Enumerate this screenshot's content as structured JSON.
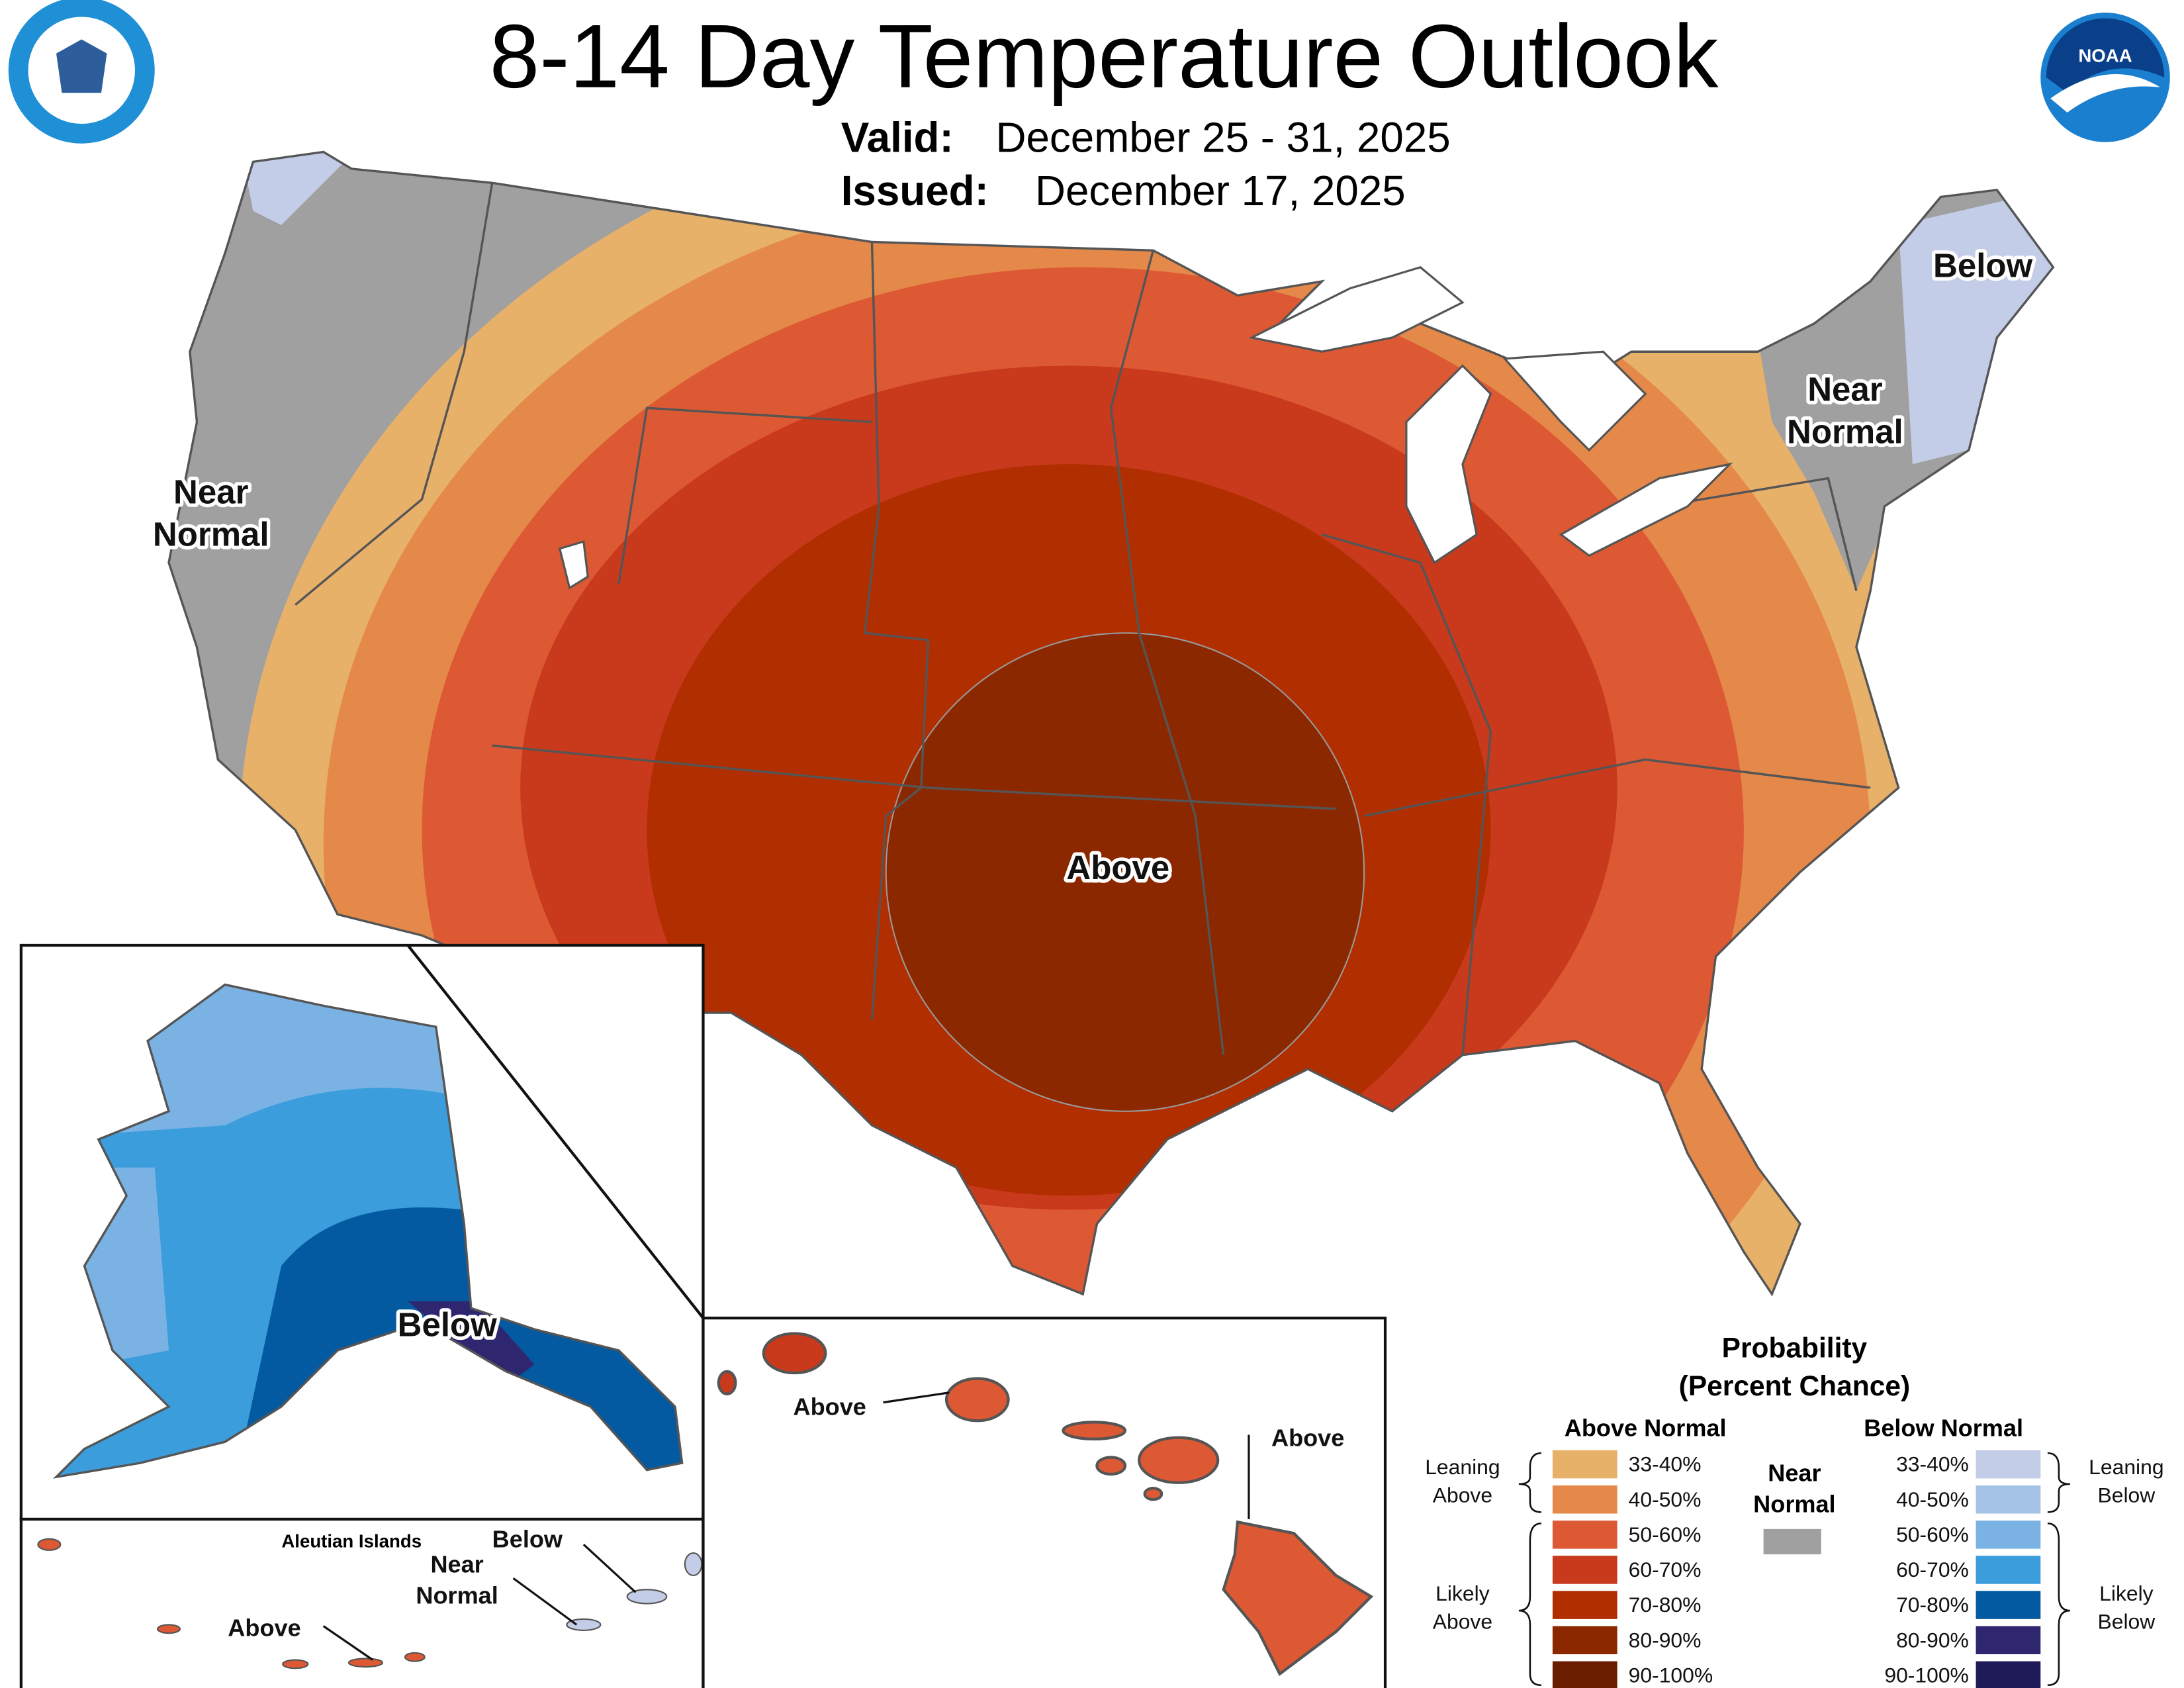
{
  "header": {
    "title": "8-14 Day Temperature Outlook",
    "valid_label": "Valid:",
    "valid": "December 25 - 31, 2025",
    "issued_label": "Issued:",
    "issued": "December 17, 2025"
  },
  "logos": {
    "noaa": "NOAA"
  },
  "conus_labels": {
    "west": [
      "Near",
      "Normal"
    ],
    "northeast_below": "Below",
    "northeast_near": [
      "Near",
      "Normal"
    ],
    "central": "Above"
  },
  "alaska_labels": {
    "mainland": "Below",
    "aleutian_title": "Aleutian Islands",
    "aleutian_below": "Below",
    "aleutian_near": [
      "Near",
      "Normal"
    ],
    "aleutian_above": "Above"
  },
  "hawaii_labels": {
    "west": "Above",
    "east": "Above"
  },
  "legend": {
    "title": [
      "Probability",
      "(Percent Chance)"
    ],
    "above_header": "Above Normal",
    "below_header": "Below Normal",
    "near": [
      "Near",
      "Normal"
    ],
    "near_color": "#a0a0a0",
    "leaning_above": [
      "Leaning",
      "Above"
    ],
    "likely_above": [
      "Likely",
      "Above"
    ],
    "leaning_below": [
      "Leaning",
      "Below"
    ],
    "likely_below": [
      "Likely",
      "Below"
    ],
    "above": [
      {
        "label": "33-40%",
        "color": "#e8b16a"
      },
      {
        "label": "40-50%",
        "color": "#e5894a"
      },
      {
        "label": "50-60%",
        "color": "#dc5934"
      },
      {
        "label": "60-70%",
        "color": "#c9391c"
      },
      {
        "label": "70-80%",
        "color": "#b02e00"
      },
      {
        "label": "80-90%",
        "color": "#8c2800"
      },
      {
        "label": "90-100%",
        "color": "#6b1d00"
      }
    ],
    "below": [
      {
        "label": "33-40%",
        "color": "#c3cde8"
      },
      {
        "label": "40-50%",
        "color": "#a4c3e5"
      },
      {
        "label": "50-60%",
        "color": "#7ab3e3"
      },
      {
        "label": "60-70%",
        "color": "#3c9ddc"
      },
      {
        "label": "70-80%",
        "color": "#045aa0"
      },
      {
        "label": "80-90%",
        "color": "#2e2770"
      },
      {
        "label": "90-100%",
        "color": "#1f1a58"
      }
    ]
  }
}
